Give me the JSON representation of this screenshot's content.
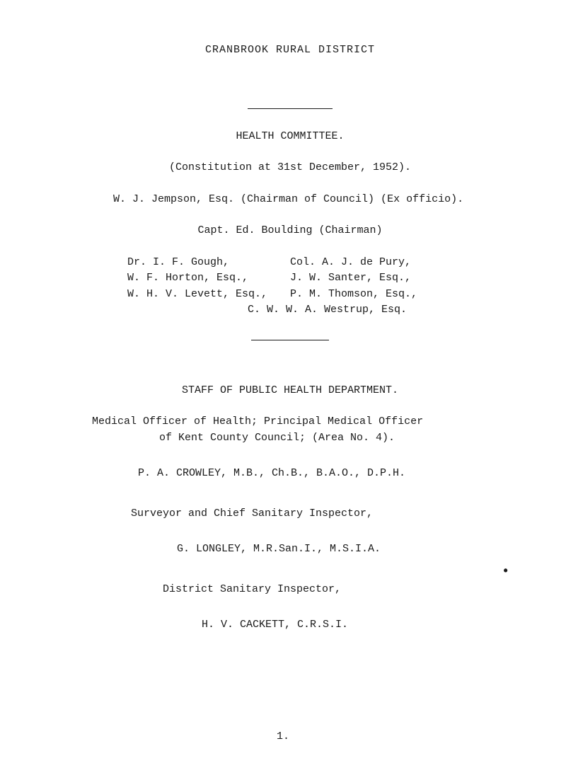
{
  "title": "CRANBROOK  RURAL  DISTRICT",
  "committee_title": "HEALTH COMMITTEE.",
  "constitution": "(Constitution at 31st December, 1952).",
  "chairman": "W. J. Jempson, Esq. (Chairman of Council) (Ex officio).",
  "capt": "Capt. Ed. Boulding (Chairman)",
  "members": {
    "row1": {
      "left": "Dr. I. F. Gough,",
      "right": "Col. A. J. de Pury,"
    },
    "row2": {
      "left": "W. F. Horton, Esq.,",
      "right": "J. W. Santer, Esq.,"
    },
    "row3": {
      "left": "W. H. V. Levett, Esq.,",
      "right": "P. M. Thomson, Esq.,"
    },
    "westrup": "C. W. W. A. Westrup, Esq."
  },
  "staff_title": "STAFF OF PUBLIC HEALTH DEPARTMENT.",
  "medical1": "Medical Officer of Health;   Principal Medical Officer",
  "medical2": "of Kent County Council;    (Area No. 4).",
  "crowley": "P. A. CROWLEY, M.B., Ch.B., B.A.O., D.P.H.",
  "surveyor": "Surveyor and Chief Sanitary Inspector,",
  "longley": "G. LONGLEY, M.R.San.I., M.S.I.A.",
  "district": "District Sanitary Inspector,",
  "cackett": "H. V. CACKETT, C.R.S.I.",
  "page_num": "1.",
  "dot": "•"
}
